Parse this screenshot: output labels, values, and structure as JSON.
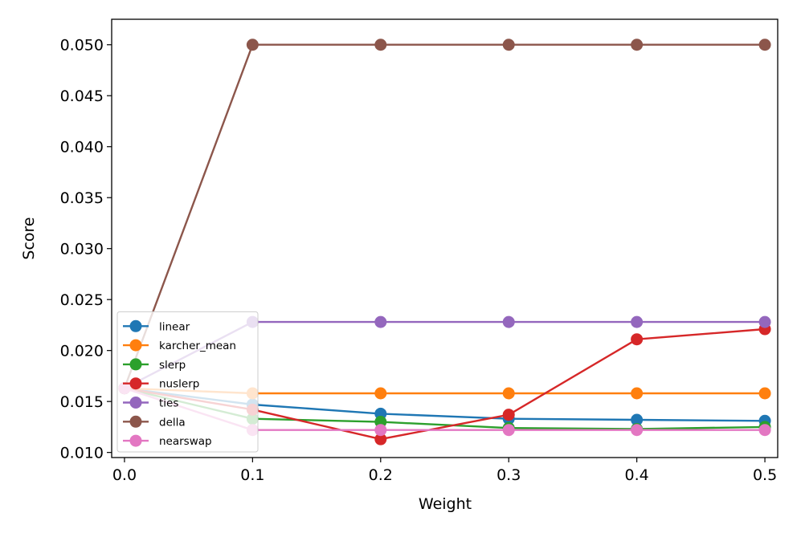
{
  "chart_data": {
    "type": "line",
    "title": "",
    "xlabel": "Weight",
    "ylabel": "Score",
    "x": [
      0.0,
      0.1,
      0.2,
      0.3,
      0.4,
      0.5
    ],
    "xlim": [
      -0.01,
      0.51
    ],
    "ylim": [
      0.0095,
      0.0525
    ],
    "xticks": [
      0.0,
      0.1,
      0.2,
      0.3,
      0.4,
      0.5
    ],
    "xtick_labels": [
      "0.0",
      "0.1",
      "0.2",
      "0.3",
      "0.4",
      "0.5"
    ],
    "yticks": [
      0.01,
      0.015,
      0.02,
      0.025,
      0.03,
      0.035,
      0.04,
      0.045,
      0.05
    ],
    "ytick_labels": [
      "0.010",
      "0.015",
      "0.020",
      "0.025",
      "0.030",
      "0.035",
      "0.040",
      "0.045",
      "0.050"
    ],
    "grid": false,
    "legend_position": "lower-left",
    "series": [
      {
        "name": "linear",
        "color": "#1f77b4",
        "values": [
          0.0163,
          0.0147,
          0.0138,
          0.0133,
          0.0132,
          0.0131
        ]
      },
      {
        "name": "karcher_mean",
        "color": "#ff7f0e",
        "values": [
          0.0163,
          0.0158,
          0.0158,
          0.0158,
          0.0158,
          0.0158
        ]
      },
      {
        "name": "slerp",
        "color": "#2ca02c",
        "values": [
          0.0163,
          0.0133,
          0.013,
          0.0124,
          0.0123,
          0.0125
        ]
      },
      {
        "name": "nuslerp",
        "color": "#d62728",
        "values": [
          0.0163,
          0.0142,
          0.0113,
          0.0137,
          0.0211,
          0.0221
        ]
      },
      {
        "name": "ties",
        "color": "#9467bd",
        "values": [
          0.0163,
          0.0228,
          0.0228,
          0.0228,
          0.0228,
          0.0228
        ]
      },
      {
        "name": "della",
        "color": "#8c564b",
        "values": [
          0.0163,
          0.05,
          0.05,
          0.05,
          0.05,
          0.05
        ]
      },
      {
        "name": "nearswap",
        "color": "#e377c2",
        "values": [
          0.0163,
          0.0122,
          0.0122,
          0.0122,
          0.0122,
          0.0122
        ]
      }
    ]
  }
}
